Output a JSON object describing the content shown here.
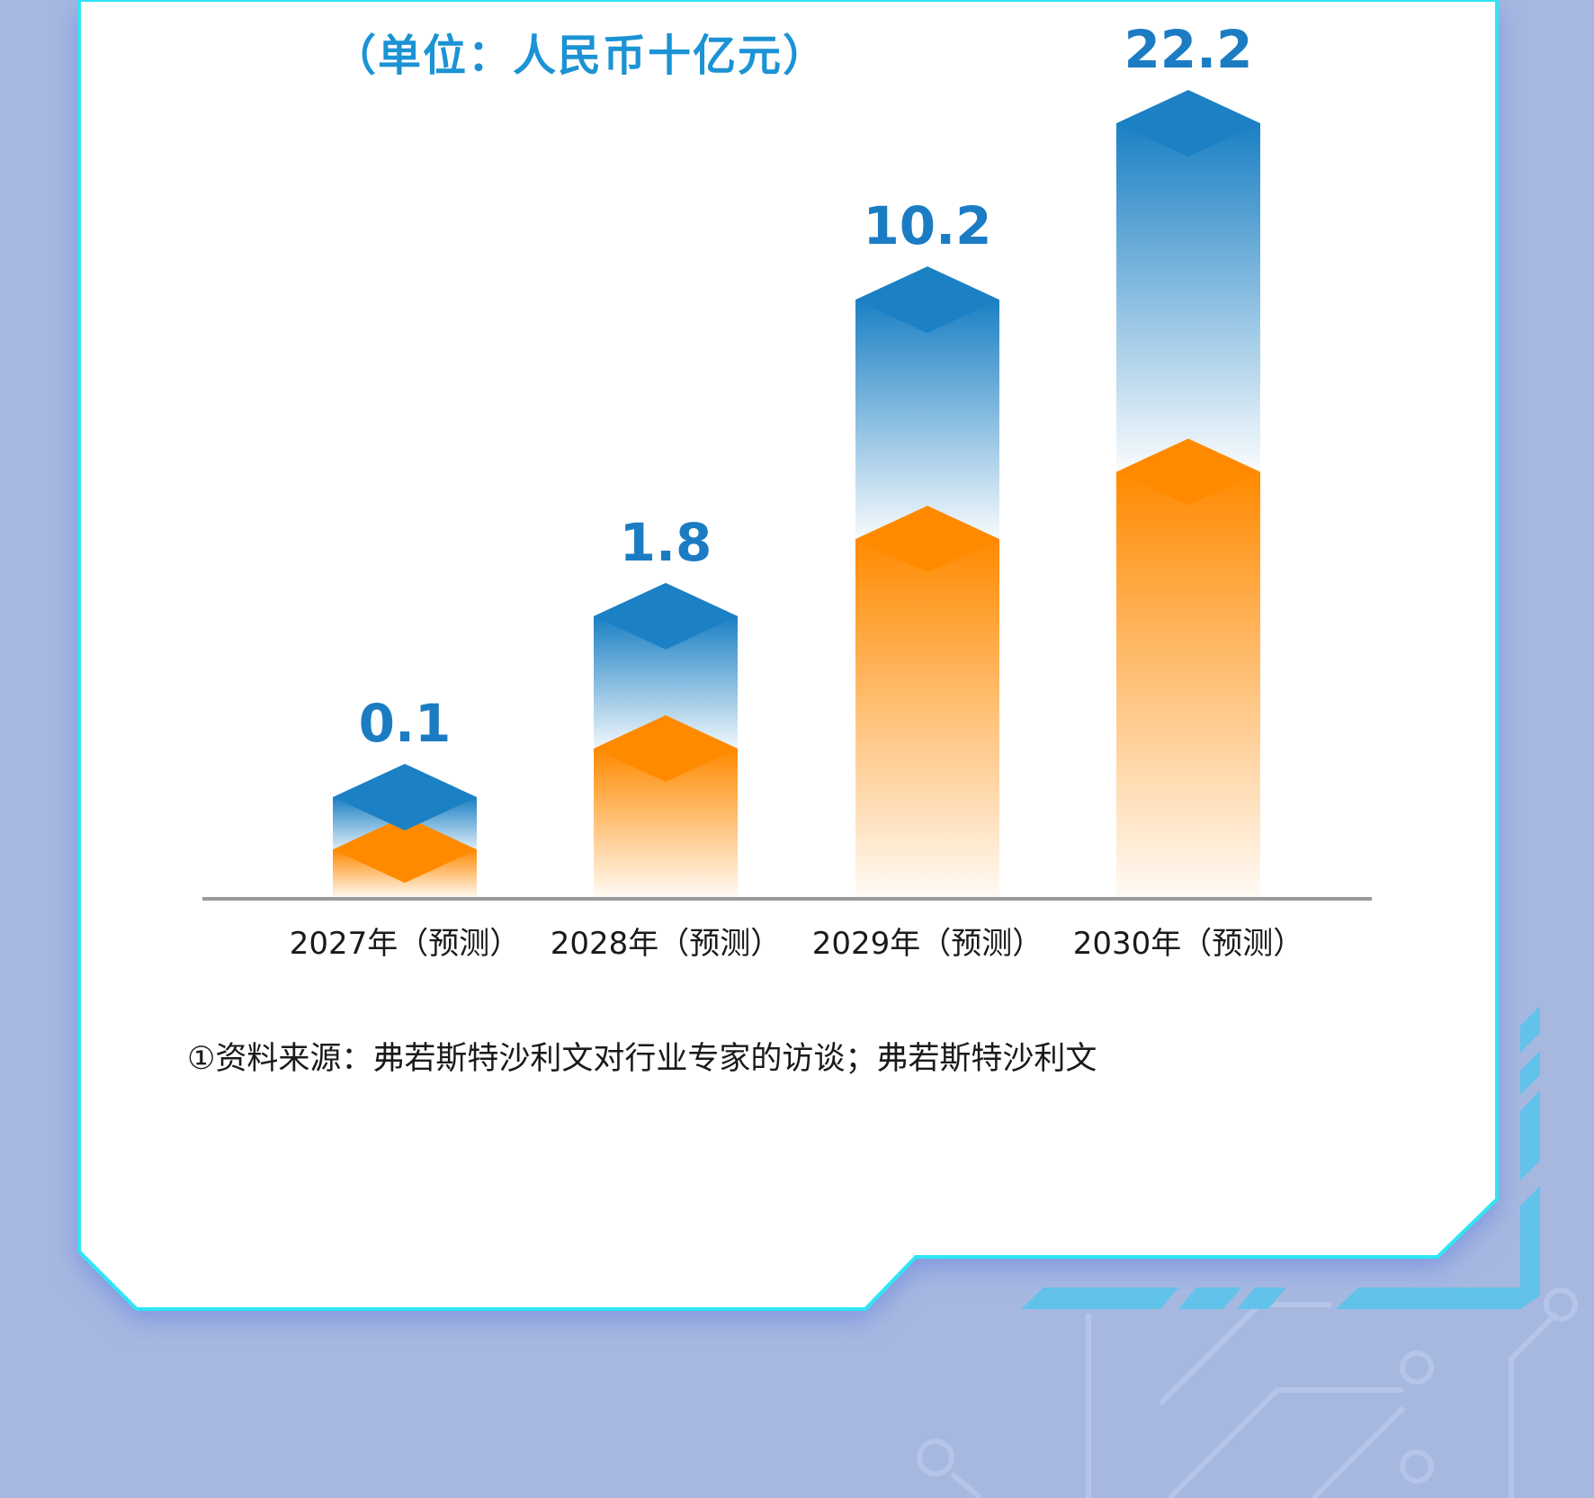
{
  "chart_data": {
    "type": "bar",
    "unit_label": "（单位：人民币十亿元）",
    "categories": [
      "2027年（预测）",
      "2028年（预测）",
      "2029年（预测）",
      "2030年（预测）"
    ],
    "values": [
      0.1,
      1.8,
      10.2,
      22.2
    ],
    "value_labels": [
      "0.1",
      "1.8",
      "10.2",
      "22.2"
    ],
    "colors": {
      "top": "#1b80c4",
      "mid": "#ff8a00",
      "value_text": "#1b7cc4",
      "axis": "#999999"
    }
  },
  "footnote": "①资料来源：弗若斯特沙利文对行业专家的访谈；弗若斯特沙利文",
  "theme": {
    "background": "#a6b8e0",
    "card": "#ffffff",
    "card_border": "#2ee6f5",
    "accent": "#62c3ea"
  }
}
